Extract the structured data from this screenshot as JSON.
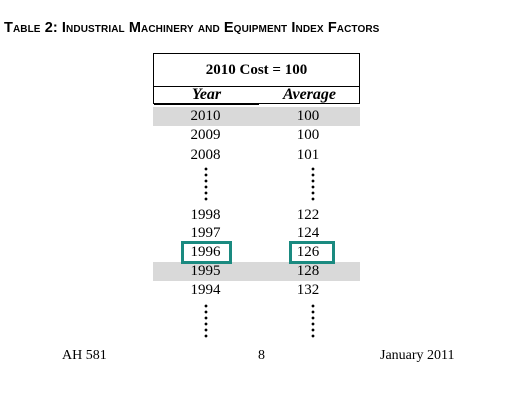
{
  "title": "Table 2: Industrial Machinery and Equipment Index Factors",
  "table": {
    "base_label": "2010 Cost = 100",
    "col_year": "Year",
    "col_average": "Average",
    "rows": [
      {
        "year": "2010",
        "average": "100"
      },
      {
        "year": "2009",
        "average": "100"
      },
      {
        "year": "2008",
        "average": "101"
      },
      {
        "year": "1998",
        "average": "122"
      },
      {
        "year": "1997",
        "average": "124"
      },
      {
        "year": "1996",
        "average": "126"
      },
      {
        "year": "1995",
        "average": "128"
      },
      {
        "year": "1994",
        "average": "132"
      }
    ],
    "highlight_color": "#1a8a80",
    "shade_color": "#d9d9d9"
  },
  "footer": {
    "left": "AH 581",
    "center": "8",
    "right": "January 2011"
  }
}
